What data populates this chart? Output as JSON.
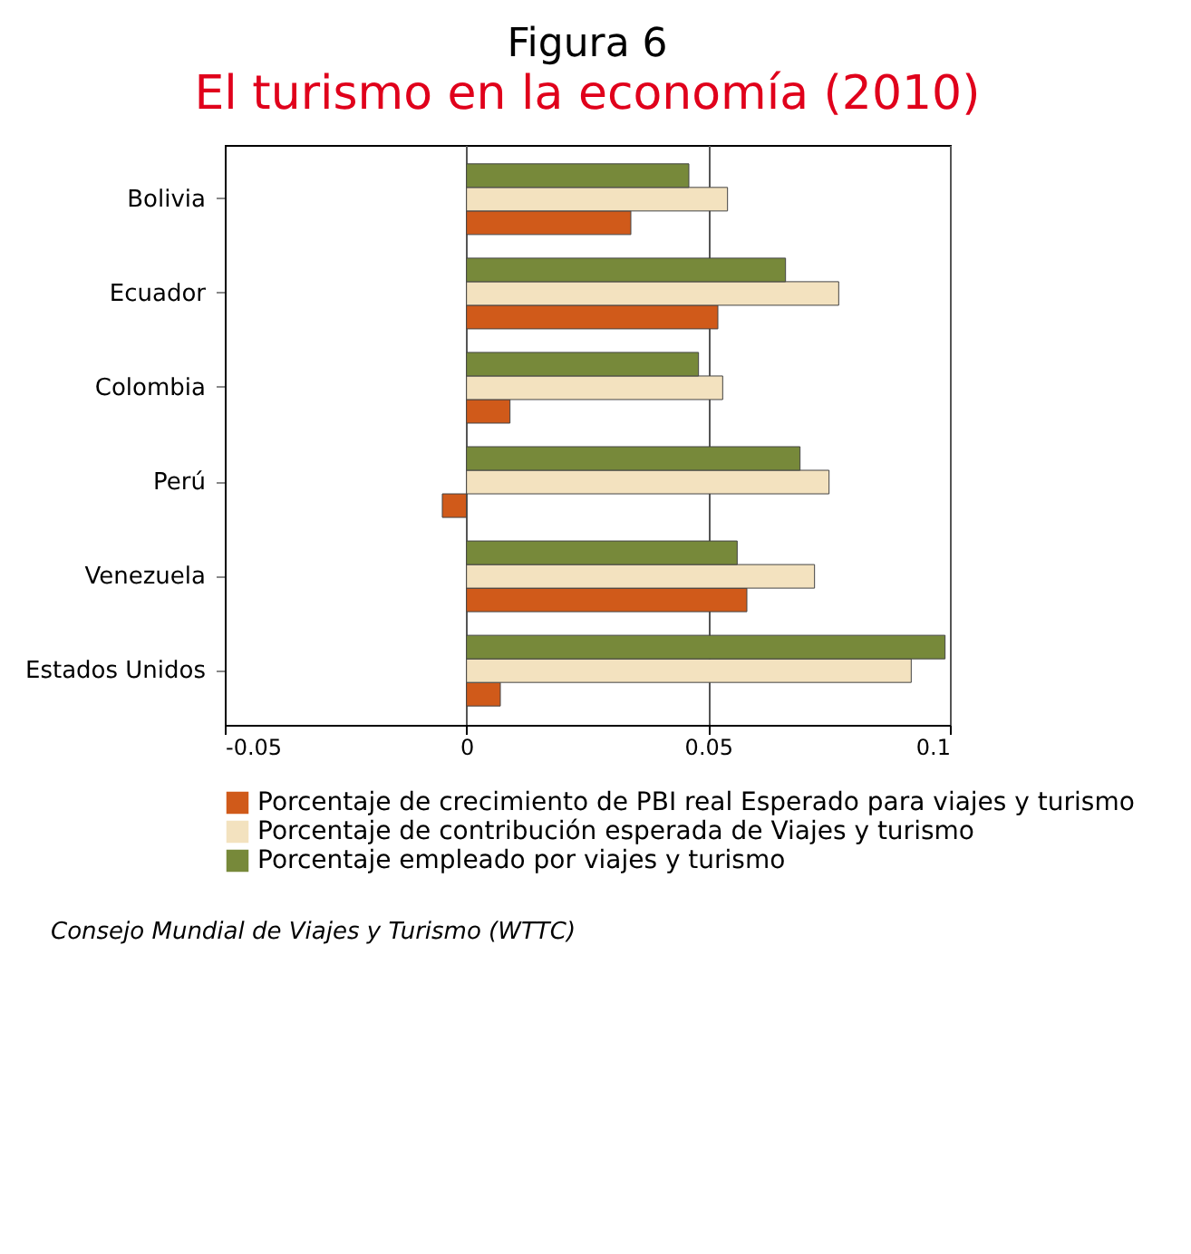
{
  "chart_data": {
    "type": "bar",
    "orientation": "horizontal",
    "title": "Figura 6",
    "subtitle": "El turismo en la economía (2010)",
    "categories": [
      "Bolivia",
      "Ecuador",
      "Colombia",
      "Perú",
      "Venezuela",
      "Estados Unidos"
    ],
    "series": [
      {
        "name": "Porcentaje de crecimiento de PBI real Esperado para viajes y turismo",
        "color": "#d05a1a",
        "values": [
          0.034,
          0.052,
          0.009,
          -0.005,
          0.058,
          0.007
        ]
      },
      {
        "name": "Porcentaje de contribución esperada de Viajes y turismo",
        "color": "#f3e2bf",
        "values": [
          0.054,
          0.077,
          0.053,
          0.075,
          0.072,
          0.092
        ]
      },
      {
        "name": "Porcentaje empleado por viajes y turismo",
        "color": "#77893a",
        "values": [
          0.046,
          0.066,
          0.048,
          0.069,
          0.056,
          0.099
        ]
      }
    ],
    "xlim": [
      -0.05,
      0.1
    ],
    "xticks": [
      -0.05,
      0,
      0.05,
      0.1
    ],
    "grid": "x",
    "legend": "bottom",
    "annotations": [
      "Consejo Mundial de Viajes y Turismo (WTTC)"
    ]
  }
}
